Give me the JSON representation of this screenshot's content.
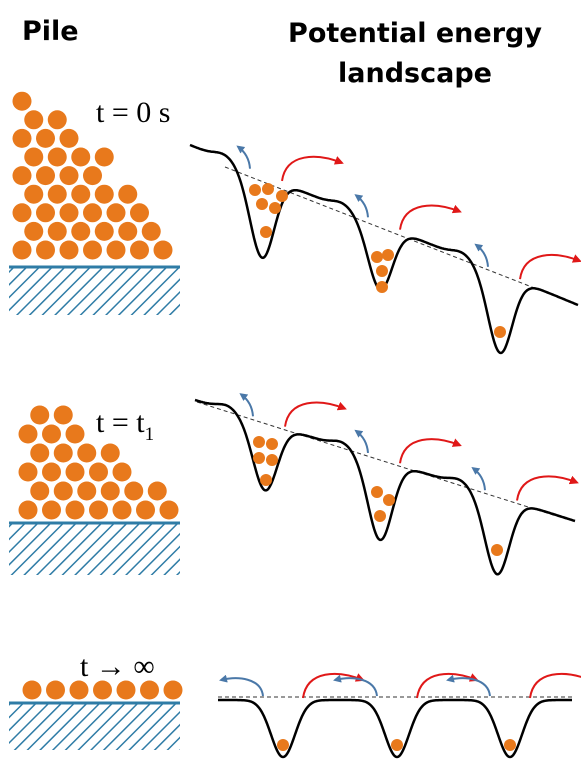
{
  "header": {
    "pile": "Pile",
    "landscape": [
      "Potential energy",
      "landscape"
    ]
  },
  "panels": [
    {
      "time": "t = 0 s"
    },
    {
      "time": "t = t",
      "subscript": "1"
    },
    {
      "time": "t → ∞"
    }
  ]
}
